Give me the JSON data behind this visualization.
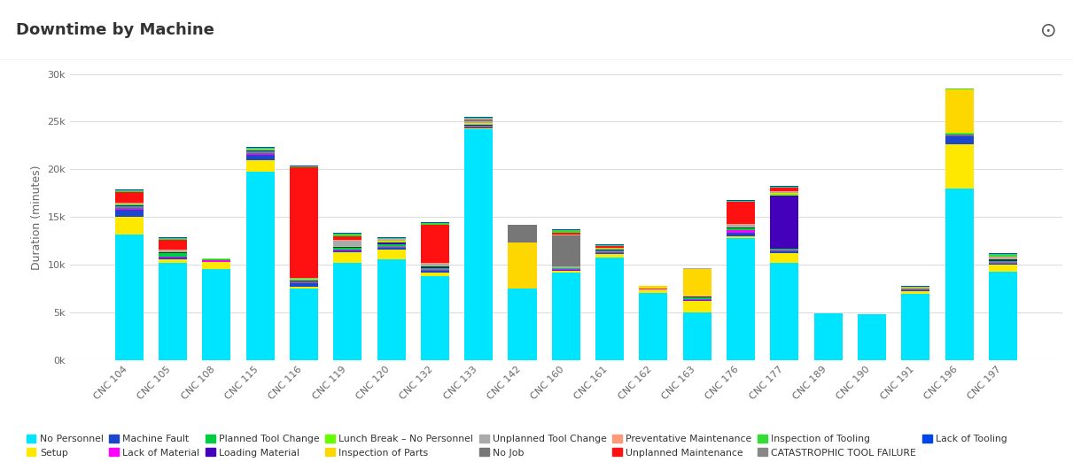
{
  "title": "Downtime by Machine",
  "ylabel": "Duration (minutes)",
  "machines": [
    "CNC 104",
    "CNC 105",
    "CNC 108",
    "CNC 115",
    "CNC 116",
    "CNC 119",
    "CNC 120",
    "CNC 132",
    "CNC 133",
    "CNC 142",
    "CNC 160",
    "CNC 161",
    "CNC 162",
    "CNC 163",
    "CNC 176",
    "CNC 177",
    "CNC 189",
    "CNC 190",
    "CNC 191",
    "CNC 196",
    "CNC 197"
  ],
  "categories": [
    "No Personnel",
    "Setup",
    "Machine Fault",
    "Lack of Material",
    "Planned Tool Change",
    "Loading Material",
    "Lunch Break – No Personnel",
    "Inspection of Parts",
    "Unplanned Tool Change",
    "No Job",
    "Preventative Maintenance",
    "Unplanned Maintenance",
    "Inspection of Tooling",
    "CATASTROPHIC TOOL FAILURE",
    "Lack of Tooling"
  ],
  "colors": [
    "#00E5FF",
    "#FFE800",
    "#1A47CC",
    "#FF00FF",
    "#00CC44",
    "#4400BB",
    "#66FF00",
    "#FFD700",
    "#AAAAAA",
    "#777777",
    "#FF9977",
    "#FF1111",
    "#33DD33",
    "#888888",
    "#0044EE"
  ],
  "data": {
    "No Personnel": [
      13200,
      10200,
      9600,
      19800,
      7500,
      10200,
      10600,
      8800,
      24200,
      7500,
      9200,
      10800,
      7100,
      5000,
      12800,
      10200,
      4900,
      4800,
      7000,
      18000,
      9300
    ],
    "Setup": [
      1800,
      400,
      700,
      1200,
      200,
      1100,
      1000,
      400,
      100,
      0,
      200,
      300,
      300,
      1200,
      200,
      1000,
      0,
      0,
      200,
      4600,
      700
    ],
    "Machine Fault": [
      800,
      200,
      0,
      500,
      400,
      200,
      200,
      200,
      100,
      0,
      100,
      100,
      0,
      100,
      400,
      200,
      0,
      0,
      100,
      900,
      100
    ],
    "Lack of Material": [
      200,
      100,
      200,
      200,
      100,
      100,
      100,
      100,
      100,
      0,
      100,
      100,
      100,
      100,
      200,
      100,
      0,
      0,
      100,
      100,
      100
    ],
    "Planned Tool Change": [
      100,
      300,
      100,
      200,
      100,
      200,
      300,
      200,
      100,
      0,
      100,
      200,
      0,
      200,
      200,
      200,
      0,
      0,
      100,
      100,
      200
    ],
    "Loading Material": [
      100,
      100,
      0,
      100,
      100,
      100,
      100,
      100,
      100,
      0,
      0,
      100,
      0,
      100,
      100,
      5600,
      0,
      0,
      0,
      0,
      200
    ],
    "Lunch Break – No Personnel": [
      100,
      100,
      100,
      100,
      100,
      100,
      100,
      100,
      100,
      0,
      0,
      100,
      0,
      0,
      100,
      100,
      0,
      0,
      100,
      100,
      100
    ],
    "Inspection of Parts": [
      0,
      0,
      0,
      0,
      0,
      0,
      100,
      0,
      100,
      4800,
      0,
      0,
      300,
      2900,
      0,
      100,
      0,
      0,
      0,
      4600,
      0
    ],
    "Unplanned Tool Change": [
      100,
      100,
      0,
      100,
      100,
      500,
      100,
      200,
      100,
      0,
      100,
      0,
      0,
      100,
      200,
      100,
      0,
      0,
      0,
      0,
      100
    ],
    "No Job": [
      0,
      0,
      0,
      0,
      0,
      0,
      0,
      0,
      200,
      1900,
      3300,
      0,
      0,
      0,
      0,
      0,
      0,
      0,
      0,
      0,
      0
    ],
    "Preventative Maintenance": [
      100,
      100,
      0,
      0,
      0,
      100,
      100,
      100,
      100,
      0,
      100,
      100,
      0,
      0,
      100,
      100,
      0,
      0,
      100,
      0,
      100
    ],
    "Unplanned Maintenance": [
      1100,
      1000,
      0,
      0,
      11600,
      400,
      0,
      4000,
      0,
      0,
      200,
      200,
      0,
      0,
      2300,
      400,
      0,
      0,
      0,
      0,
      0
    ],
    "Inspection of Tooling": [
      200,
      200,
      0,
      100,
      100,
      300,
      100,
      200,
      100,
      0,
      200,
      100,
      0,
      0,
      100,
      100,
      0,
      0,
      0,
      100,
      200
    ],
    "CATASTROPHIC TOOL FAILURE": [
      0,
      0,
      0,
      0,
      0,
      0,
      0,
      0,
      0,
      0,
      0,
      0,
      0,
      0,
      0,
      0,
      0,
      0,
      0,
      0,
      0
    ],
    "Lack of Tooling": [
      100,
      100,
      0,
      100,
      100,
      100,
      100,
      100,
      100,
      0,
      100,
      100,
      0,
      0,
      100,
      100,
      0,
      0,
      100,
      0,
      100
    ]
  },
  "ylim": [
    0,
    30000
  ],
  "yticks": [
    0,
    5000,
    10000,
    15000,
    20000,
    25000,
    30000
  ],
  "ytick_labels": [
    "0k",
    "5k",
    "10k",
    "15k",
    "20k",
    "25k",
    "30k"
  ],
  "title_bg": "#F0F0F0",
  "plot_bg": "#FFFFFF",
  "fig_bg": "#FFFFFF",
  "grid_color": "#DDDDDD",
  "bar_width": 0.65
}
